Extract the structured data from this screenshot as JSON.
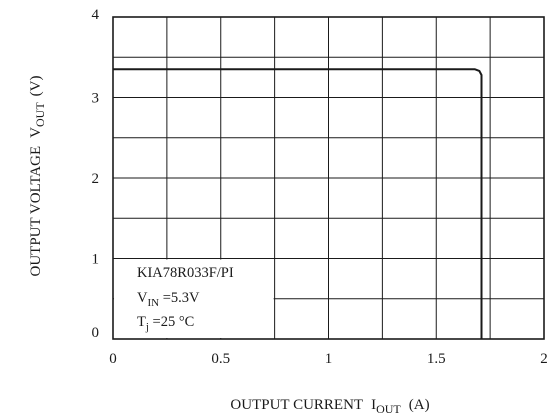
{
  "chart_data": {
    "type": "line",
    "title": "",
    "xlabel": {
      "main": "OUTPUT CURRENT",
      "symbol": "I",
      "subscript": "OUT",
      "unit": "(A)"
    },
    "ylabel": {
      "main": "OUTPUT VOLTAGE",
      "symbol": "V",
      "subscript": "OUT",
      "unit": "(V)"
    },
    "xlim": [
      0,
      2
    ],
    "ylim": [
      0,
      4
    ],
    "x_ticks": [
      0,
      0.5,
      1,
      1.5,
      2
    ],
    "x_tick_labels": [
      "0",
      "0.5",
      "1",
      "1.5",
      "2"
    ],
    "y_ticks": [
      0,
      1,
      2,
      3,
      4
    ],
    "y_tick_labels": [
      "0",
      "1",
      "2",
      "3",
      "4"
    ],
    "x_minor_step": 0.25,
    "y_minor_step": 0.5,
    "grid": true,
    "legend_position": "bottom-left",
    "annotation": {
      "device": "KIA78R033F/PI",
      "vin_symbol": "V",
      "vin_subscript": "IN",
      "vin_value": " =5.3V",
      "tj_symbol": "T",
      "tj_subscript": "j",
      "tj_value": " =25 °C"
    },
    "series": [
      {
        "x": [
          0,
          0.5,
          1.0,
          1.5,
          1.68,
          1.7,
          1.71,
          1.71
        ],
        "y": [
          3.35,
          3.35,
          3.35,
          3.35,
          3.35,
          3.33,
          3.28,
          0
        ]
      }
    ],
    "colors": {
      "line": "#1a1a1a",
      "grid": "#1a1a1a",
      "background": "#ffffff"
    }
  }
}
